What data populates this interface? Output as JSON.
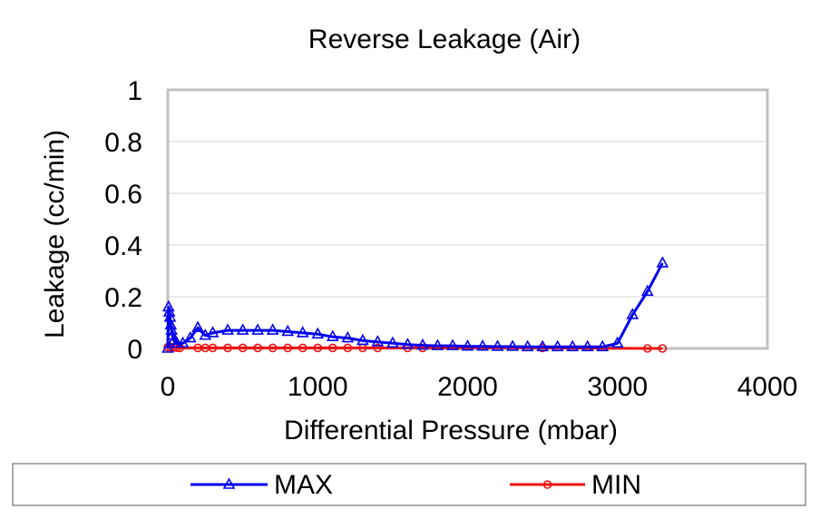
{
  "chart_data": {
    "type": "line",
    "title": "Reverse Leakage (Air)",
    "xlabel": "Differential Pressure (mbar)",
    "ylabel": "Leakage (cc/min)",
    "xlim": [
      0,
      4000
    ],
    "ylim": [
      0,
      1
    ],
    "x_ticks": [
      "0",
      "1000",
      "2000",
      "3000",
      "4000"
    ],
    "y_ticks": [
      "0",
      "0.2",
      "0.4",
      "0.6",
      "0.8",
      "1"
    ],
    "grid": "horizontal",
    "legend_position": "bottom",
    "series": [
      {
        "name": "MAX",
        "color": "#0000ee",
        "marker": "triangle",
        "x": [
          0,
          5,
          10,
          15,
          20,
          25,
          30,
          40,
          60,
          100,
          150,
          200,
          250,
          300,
          400,
          500,
          600,
          700,
          800,
          900,
          1000,
          1100,
          1200,
          1300,
          1400,
          1500,
          1600,
          1700,
          1800,
          1900,
          2000,
          2100,
          2200,
          2300,
          2400,
          2500,
          2600,
          2700,
          2800,
          2900,
          3000,
          3100,
          3200,
          3300
        ],
        "y": [
          0.0,
          0.16,
          0.14,
          0.12,
          0.09,
          0.07,
          0.05,
          0.03,
          0.02,
          0.02,
          0.04,
          0.08,
          0.05,
          0.06,
          0.07,
          0.07,
          0.07,
          0.07,
          0.065,
          0.06,
          0.055,
          0.045,
          0.04,
          0.03,
          0.025,
          0.02,
          0.015,
          0.012,
          0.01,
          0.01,
          0.008,
          0.008,
          0.007,
          0.007,
          0.006,
          0.006,
          0.006,
          0.006,
          0.006,
          0.006,
          0.02,
          0.13,
          0.22,
          0.33
        ]
      },
      {
        "name": "MIN",
        "color": "#ee1111",
        "marker": "circle",
        "x": [
          0,
          20,
          40,
          60,
          80,
          200,
          250,
          300,
          400,
          500,
          600,
          700,
          800,
          900,
          1000,
          1100,
          1200,
          1300,
          1400,
          1600,
          1700,
          2500,
          3200,
          3300
        ],
        "y": [
          0.005,
          0.005,
          0.004,
          0.003,
          0.002,
          0.002,
          0.002,
          0.002,
          0.002,
          0.002,
          0.002,
          0.002,
          0.002,
          0.002,
          0.002,
          0.002,
          0.002,
          0.002,
          0.002,
          0.002,
          0.002,
          0.002,
          0.0,
          0.0
        ]
      }
    ]
  }
}
